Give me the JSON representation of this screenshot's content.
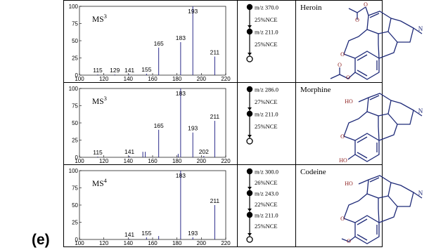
{
  "figure": {
    "panel_label": "(e)"
  },
  "rows": [
    {
      "ms_stage": "MS",
      "ms_exponent": "3",
      "compound": "Heroin",
      "steps": [
        {
          "text": "m/z 370.0"
        },
        {
          "text": "25%NCE"
        },
        {
          "text": "m/z 211.0"
        },
        {
          "text": "25%NCE"
        }
      ],
      "chart_data": {
        "type": "bar",
        "xlim": [
          100,
          220
        ],
        "ylim": [
          0,
          100
        ],
        "x_ticks": [
          100,
          120,
          140,
          160,
          180,
          200,
          220
        ],
        "y_ticks": [
          0,
          25,
          50,
          75,
          100
        ],
        "peaks": [
          {
            "mz": 115,
            "intensity": 1,
            "label": "115"
          },
          {
            "mz": 129,
            "intensity": 1,
            "label": "129"
          },
          {
            "mz": 141,
            "intensity": 1,
            "label": "141"
          },
          {
            "mz": 155,
            "intensity": 2,
            "label": "155"
          },
          {
            "mz": 165,
            "intensity": 40,
            "label": "165"
          },
          {
            "mz": 183,
            "intensity": 48,
            "label": "183"
          },
          {
            "mz": 193,
            "intensity": 100,
            "label": "193"
          },
          {
            "mz": 211,
            "intensity": 27,
            "label": "211"
          }
        ]
      }
    },
    {
      "ms_stage": "MS",
      "ms_exponent": "3",
      "compound": "Morphine",
      "steps": [
        {
          "text": "m/z 286.0"
        },
        {
          "text": "27%NCE"
        },
        {
          "text": "m/z 211.0"
        },
        {
          "text": "25%NCE"
        }
      ],
      "chart_data": {
        "type": "bar",
        "xlim": [
          100,
          220
        ],
        "ylim": [
          0,
          100
        ],
        "x_ticks": [
          100,
          120,
          140,
          160,
          180,
          200,
          220
        ],
        "y_ticks": [
          0,
          25,
          50,
          75,
          100
        ],
        "peaks": [
          {
            "mz": 115,
            "intensity": 1,
            "label": "115"
          },
          {
            "mz": 141,
            "intensity": 2,
            "label": "141"
          },
          {
            "mz": 152,
            "intensity": 8,
            "label": ""
          },
          {
            "mz": 154,
            "intensity": 8,
            "label": ""
          },
          {
            "mz": 165,
            "intensity": 40,
            "label": "165"
          },
          {
            "mz": 181,
            "intensity": 5,
            "label": ""
          },
          {
            "mz": 183,
            "intensity": 100,
            "label": "183"
          },
          {
            "mz": 193,
            "intensity": 36,
            "label": "193"
          },
          {
            "mz": 202,
            "intensity": 2,
            "label": "202"
          },
          {
            "mz": 211,
            "intensity": 53,
            "label": "211"
          }
        ]
      }
    },
    {
      "ms_stage": "MS",
      "ms_exponent": "4",
      "compound": "Codeine",
      "steps": [
        {
          "text": "m/z 300.0"
        },
        {
          "text": "26%NCE"
        },
        {
          "text": "m/z 243.0"
        },
        {
          "text": "22%NCE"
        },
        {
          "text": "m/z 211.0"
        },
        {
          "text": "25%NCE"
        }
      ],
      "chart_data": {
        "type": "bar",
        "xlim": [
          100,
          220
        ],
        "ylim": [
          0,
          100
        ],
        "x_ticks": [
          100,
          120,
          140,
          160,
          180,
          200,
          220
        ],
        "y_ticks": [
          0,
          25,
          50,
          75,
          100
        ],
        "peaks": [
          {
            "mz": 141,
            "intensity": 1,
            "label": "141"
          },
          {
            "mz": 155,
            "intensity": 3,
            "label": "155"
          },
          {
            "mz": 165,
            "intensity": 5,
            "label": ""
          },
          {
            "mz": 183,
            "intensity": 100,
            "label": "183"
          },
          {
            "mz": 193,
            "intensity": 3,
            "label": "193"
          },
          {
            "mz": 211,
            "intensity": 50,
            "label": "211"
          }
        ]
      }
    }
  ]
}
